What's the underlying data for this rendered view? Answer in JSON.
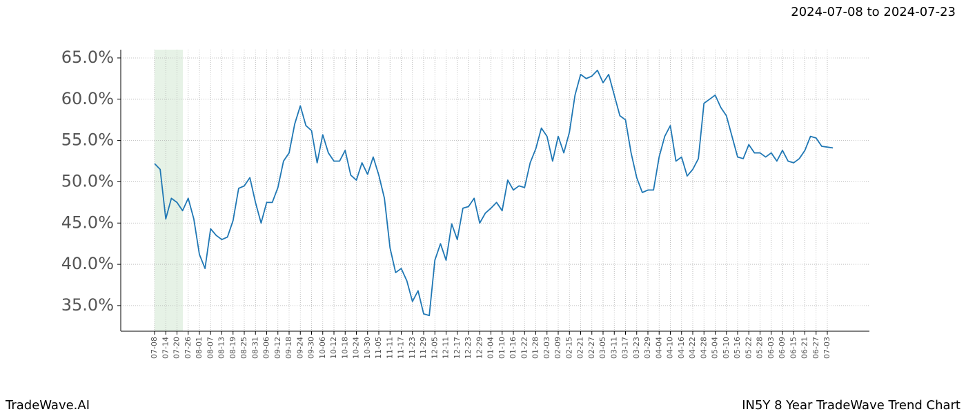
{
  "chart_data": {
    "type": "line",
    "title": "IN5Y 8 Year TradeWave Trend Chart",
    "subtitle": "2024-07-08 to 2024-07-23",
    "brand": "TradeWave.AI",
    "categories": [
      "07-08",
      null,
      "07-14",
      null,
      "07-20",
      null,
      "07-26",
      null,
      "08-01",
      null,
      "08-07",
      null,
      "08-13",
      null,
      "08-19",
      null,
      "08-25",
      null,
      "08-31",
      null,
      "09-06",
      null,
      "09-12",
      null,
      "09-18",
      null,
      "09-24",
      null,
      "09-30",
      null,
      "10-06",
      null,
      "10-12",
      null,
      "10-18",
      null,
      "10-24",
      null,
      "10-30",
      null,
      "11-05",
      null,
      "11-11",
      null,
      "11-17",
      null,
      "11-23",
      null,
      "11-29",
      null,
      "12-05",
      null,
      "12-11",
      null,
      "12-17",
      null,
      "12-23",
      null,
      "12-29",
      null,
      "01-04",
      null,
      "01-10",
      null,
      "01-16",
      null,
      "01-22",
      null,
      "01-28",
      null,
      "02-03",
      null,
      "02-09",
      null,
      "02-15",
      null,
      "02-21",
      null,
      "02-27",
      null,
      "03-05",
      null,
      "03-11",
      null,
      "03-17",
      null,
      "03-23",
      null,
      "03-29",
      null,
      "04-04",
      null,
      "04-10",
      null,
      "04-16",
      null,
      "04-22",
      null,
      "04-28",
      null,
      "05-04",
      null,
      "05-10",
      null,
      "05-16",
      null,
      "05-22",
      null,
      "05-28",
      null,
      "06-03",
      null,
      "06-09",
      null,
      "06-15",
      null,
      "06-21",
      null,
      "06-27",
      null,
      "07-03",
      null
    ],
    "values": [
      52.2,
      51.5,
      45.5,
      48,
      47.5,
      46.5,
      48,
      45.5,
      41.2,
      39.5,
      44.3,
      43.5,
      43,
      43.3,
      45.3,
      49.2,
      49.5,
      50.5,
      47.5,
      45,
      47.5,
      47.5,
      49.3,
      52.5,
      53.5,
      57,
      59.2,
      56.8,
      56.2,
      52.3,
      55.7,
      53.5,
      52.5,
      52.5,
      53.8,
      50.8,
      50.2,
      52.3,
      50.9,
      53,
      50.8,
      48,
      42,
      39,
      39.5,
      38,
      35.5,
      36.8,
      34,
      33.8,
      40.5,
      42.5,
      40.5,
      44.9,
      43,
      46.8,
      47,
      48,
      45,
      46.2,
      46.8,
      47.5,
      46.5,
      50.2,
      49,
      49.5,
      49.3,
      52.3,
      54,
      56.5,
      55.5,
      52.5,
      55.5,
      53.5,
      56,
      60.5,
      63,
      62.5,
      62.8,
      63.5,
      62,
      63,
      60.5,
      58,
      57.5,
      53.5,
      50.5,
      48.7,
      49,
      49,
      53,
      55.5,
      56.8,
      52.5,
      53,
      50.7,
      51.5,
      52.8,
      59.5,
      60,
      60.5,
      59,
      58,
      55.5,
      53,
      52.8,
      54.5,
      53.5,
      53.5,
      53,
      53.5,
      52.5,
      53.8,
      52.5,
      52.3,
      52.8,
      53.8,
      55.5,
      55.3,
      54.3,
      54.2,
      54.1
    ],
    "color": "#1f77b4",
    "ylim": [
      31.9,
      66
    ],
    "yticks": [
      {
        "value": 35,
        "label": "35.0%"
      },
      {
        "value": 40,
        "label": "40.0%"
      },
      {
        "value": 45,
        "label": "45.0%"
      },
      {
        "value": 50,
        "label": "50.0%"
      },
      {
        "value": 55,
        "label": "55.0%"
      },
      {
        "value": 60,
        "label": "60.0%"
      },
      {
        "value": 65,
        "label": "65.0%"
      }
    ],
    "grid": true
  }
}
